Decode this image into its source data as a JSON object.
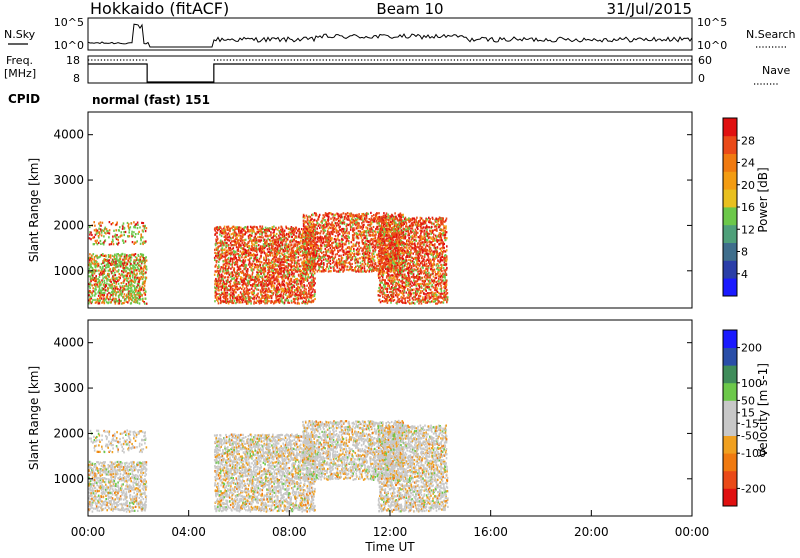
{
  "header": {
    "station": "Hokkaido (fitACF)",
    "beam": "Beam 10",
    "date": "31/Jul/2015"
  },
  "nsky_panel": {
    "left_label": "N.Sky",
    "right_label": "N.Search",
    "left_ticks": [
      "10^5",
      "10^0"
    ],
    "right_ticks": [
      "10^5",
      "10^0"
    ]
  },
  "freq_panel": {
    "left_label_1": "Freq.",
    "left_label_2": "[MHz]",
    "right_label": "Nave",
    "left_ticks": [
      "18",
      "8"
    ],
    "right_ticks": [
      "60",
      "0"
    ]
  },
  "cpid_panel": {
    "label": "CPID",
    "text": "normal (fast) 151"
  },
  "colors": {
    "power_scale": [
      "#1a1aff",
      "#2a3ea8",
      "#3f6e8c",
      "#4fa07a",
      "#6cc84a",
      "#e8c020",
      "#f39c12",
      "#f07a10",
      "#ea4a18",
      "#e01010"
    ],
    "velocity_scale": [
      "#e01010",
      "#ea4a18",
      "#f07a10",
      "#f0a020",
      "#c8c8c8",
      "#c8c8c8",
      "#6cc84a",
      "#3f8c5a",
      "#2a4ea8",
      "#1a1aff"
    ]
  },
  "chart_data": [
    {
      "type": "heatmap",
      "name": "power",
      "ylabel": "Slant Range [km]",
      "y_ticks": [
        "1000",
        "2000",
        "3000",
        "4000"
      ],
      "y_tick_values": [
        1000,
        2000,
        3000,
        4000
      ],
      "ylim": [
        180,
        4500
      ],
      "xlim": [
        0,
        24
      ],
      "colorbar_label": "Power [dB]",
      "colorbar_ticks": [
        "4",
        "8",
        "12",
        "16",
        "20",
        "24",
        "28"
      ],
      "colorbar_values": [
        4,
        8,
        12,
        16,
        20,
        24,
        28
      ],
      "colorbar_range": [
        0,
        32
      ]
    },
    {
      "type": "heatmap",
      "name": "velocity",
      "xlabel": "Time UT",
      "ylabel": "Slant Range [km]",
      "x_ticks": [
        "00:00",
        "04:00",
        "08:00",
        "12:00",
        "16:00",
        "20:00",
        "00:00"
      ],
      "x_tick_values": [
        0,
        4,
        8,
        12,
        16,
        20,
        24
      ],
      "y_ticks": [
        "1000",
        "2000",
        "3000",
        "4000"
      ],
      "y_tick_values": [
        1000,
        2000,
        3000,
        4000
      ],
      "ylim": [
        180,
        4500
      ],
      "xlim": [
        0,
        24
      ],
      "colorbar_label": "Velocity [m s-1]",
      "colorbar_ticks": [
        "200",
        "100",
        "50",
        "15",
        "-15",
        "-50",
        "-100",
        "-200"
      ],
      "colorbar_values": [
        200,
        100,
        50,
        15,
        -15,
        -50,
        -100,
        -200
      ],
      "colorbar_range": [
        -250,
        250
      ]
    }
  ]
}
